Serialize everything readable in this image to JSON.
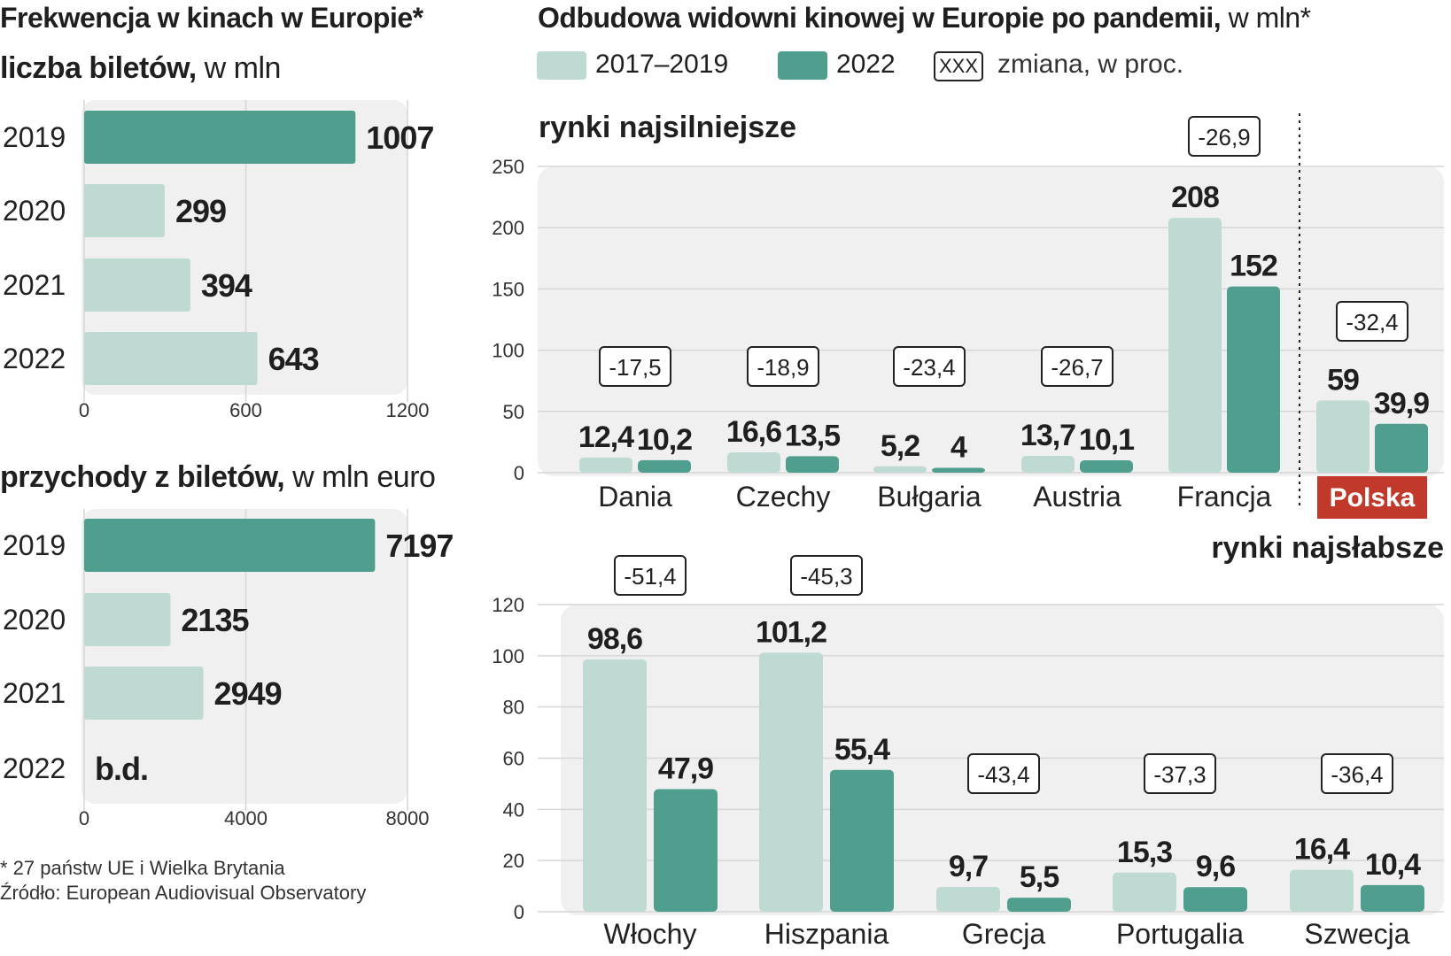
{
  "colors": {
    "light": "#bfdad2",
    "dark": "#4f9e8e",
    "panel": "#f0f0f0",
    "grid": "#d6d6d6",
    "polska": "#c0392b"
  },
  "left": {
    "title_bold": "Frekwencja w kinach w Europie*",
    "sub1_bold": "liczba biletów,",
    "sub1_light": " w mln",
    "sub2_bold": "przychody z biletów,",
    "sub2_light": " w mln euro",
    "footnote": "* 27 państw UE i Wielka Brytania",
    "source": "Źródło: European Audiovisual Observatory"
  },
  "right": {
    "title_bold": "Odbudowa widowni kinowej w Europie po pandemii,",
    "title_light": " w mln*",
    "legend": {
      "series1": "2017–2019",
      "series2": "2022",
      "box": "XXX",
      "box_label": "zmiana, w proc."
    },
    "strong_label": "rynki najsilniejsze",
    "weak_label": "rynki najsłabsze"
  },
  "chart_data": [
    {
      "type": "bar",
      "orientation": "horizontal",
      "title": "liczba biletów, w mln",
      "categories": [
        "2019",
        "2020",
        "2021",
        "2022"
      ],
      "values": [
        1007,
        299,
        394,
        643
      ],
      "value_labels": [
        "1007",
        "299",
        "394",
        "643"
      ],
      "highlight": [
        true,
        false,
        false,
        false
      ],
      "xlim": [
        0,
        1200
      ],
      "ticks": [
        0,
        600,
        1200
      ],
      "tick_labels": [
        "0",
        "600",
        "1200"
      ]
    },
    {
      "type": "bar",
      "orientation": "horizontal",
      "title": "przychody z biletów, w mln euro",
      "categories": [
        "2019",
        "2020",
        "2021",
        "2022"
      ],
      "values": [
        7197,
        2135,
        2949,
        null
      ],
      "value_labels": [
        "7197",
        "2135",
        "2949",
        "b.d."
      ],
      "highlight": [
        true,
        false,
        false,
        false
      ],
      "xlim": [
        0,
        8000
      ],
      "ticks": [
        0,
        4000,
        8000
      ],
      "tick_labels": [
        "0",
        "4000",
        "8000"
      ]
    },
    {
      "type": "bar",
      "title": "rynki najsilniejsze",
      "categories": [
        "Dania",
        "Czechy",
        "Bułgaria",
        "Austria",
        "Francja",
        "Polska"
      ],
      "series": [
        {
          "name": "2017–2019",
          "values": [
            12.4,
            16.6,
            5.2,
            13.7,
            208,
            59
          ],
          "labels": [
            "12,4",
            "16,6",
            "5,2",
            "13,7",
            "208",
            "59"
          ]
        },
        {
          "name": "2022",
          "values": [
            10.2,
            13.5,
            4,
            10.1,
            152,
            39.9
          ],
          "labels": [
            "10,2",
            "13,5",
            "4",
            "10,1",
            "152",
            "39,9"
          ]
        }
      ],
      "change_pct": [
        "-17,5",
        "-18,9",
        "-23,4",
        "-26,7",
        "-26,9",
        "-32,4"
      ],
      "ylim": [
        0,
        250
      ],
      "ticks": [
        0,
        50,
        100,
        150,
        200,
        250
      ],
      "tick_labels": [
        "0",
        "50",
        "100",
        "150",
        "200",
        "250"
      ]
    },
    {
      "type": "bar",
      "title": "rynki najsłabsze",
      "categories": [
        "Włochy",
        "Hiszpania",
        "Grecja",
        "Portugalia",
        "Szwecja"
      ],
      "series": [
        {
          "name": "2017–2019",
          "values": [
            98.6,
            101.2,
            9.7,
            15.3,
            16.4
          ],
          "labels": [
            "98,6",
            "101,2",
            "9,7",
            "15,3",
            "16,4"
          ]
        },
        {
          "name": "2022",
          "values": [
            47.9,
            55.4,
            5.5,
            9.6,
            10.4
          ],
          "labels": [
            "47,9",
            "55,4",
            "5,5",
            "9,6",
            "10,4"
          ]
        }
      ],
      "change_pct": [
        "-51,4",
        "-45,3",
        "-43,4",
        "-37,3",
        "-36,4"
      ],
      "ylim": [
        0,
        120
      ],
      "ticks": [
        0,
        20,
        40,
        60,
        80,
        100,
        120
      ],
      "tick_labels": [
        "0",
        "20",
        "40",
        "60",
        "80",
        "100",
        "120"
      ]
    }
  ]
}
